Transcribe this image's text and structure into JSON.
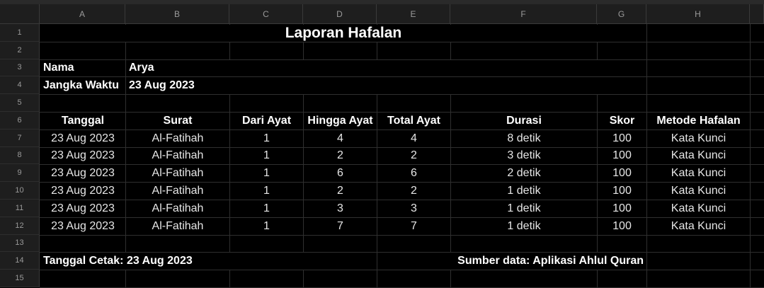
{
  "columns": [
    "A",
    "B",
    "C",
    "D",
    "E",
    "F",
    "G",
    "H"
  ],
  "rows": [
    "1",
    "2",
    "3",
    "4",
    "5",
    "6",
    "7",
    "8",
    "9",
    "10",
    "11",
    "12",
    "13",
    "14",
    "15"
  ],
  "title": "Laporan Hafalan",
  "nama_label": "Nama",
  "nama_value": "Arya",
  "jangka_label": "Jangka Waktu",
  "jangka_value": "23 Aug 2023",
  "headers": [
    "Tanggal",
    "Surat",
    "Dari Ayat",
    "Hingga Ayat",
    "Total Ayat",
    "Durasi",
    "Skor",
    "Metode Hafalan"
  ],
  "records": [
    [
      "23 Aug 2023",
      "Al-Fatihah",
      "1",
      "4",
      "4",
      "8 detik",
      "100",
      "Kata Kunci"
    ],
    [
      "23 Aug 2023",
      "Al-Fatihah",
      "1",
      "2",
      "2",
      "3 detik",
      "100",
      "Kata Kunci"
    ],
    [
      "23 Aug 2023",
      "Al-Fatihah",
      "1",
      "6",
      "6",
      "2 detik",
      "100",
      "Kata Kunci"
    ],
    [
      "23 Aug 2023",
      "Al-Fatihah",
      "1",
      "2",
      "2",
      "1 detik",
      "100",
      "Kata Kunci"
    ],
    [
      "23 Aug 2023",
      "Al-Fatihah",
      "1",
      "3",
      "3",
      "1 detik",
      "100",
      "Kata Kunci"
    ],
    [
      "23 Aug 2023",
      "Al-Fatihah",
      "1",
      "7",
      "7",
      "1 detik",
      "100",
      "Kata Kunci"
    ]
  ],
  "footer_left": "Tanggal Cetak: 23 Aug 2023",
  "footer_right": "Sumber data: Aplikasi Ahlul Quran"
}
